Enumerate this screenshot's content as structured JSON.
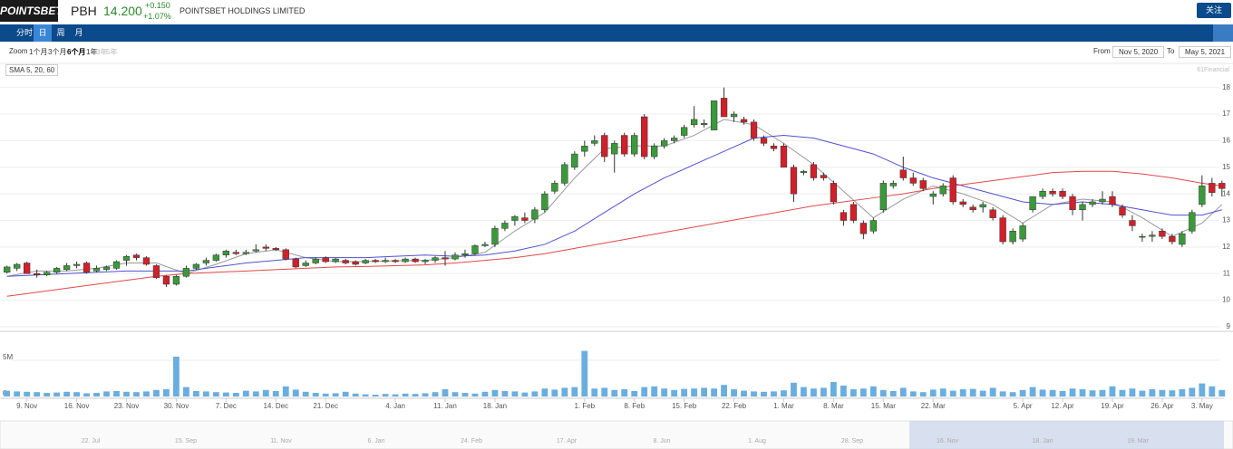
{
  "header": {
    "logo": "POINTSBET",
    "ticker": "PBH",
    "price": "14.200",
    "change": "+0.150",
    "change_pct": "+1.07%",
    "company": "POINTSBET HOLDINGS LIMITED",
    "follow": "关注"
  },
  "tabs": [
    "分时",
    "日",
    "周",
    "月"
  ],
  "active_tab": 1,
  "zoom": {
    "label": "Zoom",
    "options": [
      "1个月",
      "3个月",
      "6个月",
      "1年",
      "3年",
      "5年"
    ],
    "active": 2,
    "disabled": [
      4,
      5
    ]
  },
  "range": {
    "from_label": "From",
    "from": "Nov 5, 2020",
    "to_label": "To",
    "to": "May 5, 2021"
  },
  "chart_data": {
    "type": "candlestick",
    "legend": "SMA 5, 20, 60",
    "credit": "61Financial",
    "up_color": "#3a9a3a",
    "down_color": "#d0202a",
    "grid": true,
    "xlim": [
      -0.7,
      122.2
    ],
    "ylim": [
      9,
      18.5
    ],
    "yticks": [
      9,
      10,
      11,
      12,
      13,
      14,
      15,
      16,
      17,
      18
    ],
    "xticks": [
      {
        "value": 2,
        "label": "9. Nov"
      },
      {
        "value": 7,
        "label": "16. Nov"
      },
      {
        "value": 12,
        "label": "23. Nov"
      },
      {
        "value": 17,
        "label": "30. Nov"
      },
      {
        "value": 22,
        "label": "7. Dec"
      },
      {
        "value": 27,
        "label": "14. Dec"
      },
      {
        "value": 32,
        "label": "21. Dec"
      },
      {
        "value": 39,
        "label": "4. Jan"
      },
      {
        "value": 44,
        "label": "11. Jan"
      },
      {
        "value": 49,
        "label": "18. Jan"
      },
      {
        "value": 58,
        "label": "1. Feb"
      },
      {
        "value": 63,
        "label": "8. Feb"
      },
      {
        "value": 68,
        "label": "15. Feb"
      },
      {
        "value": 73,
        "label": "22. Feb"
      },
      {
        "value": 78,
        "label": "1. Mar"
      },
      {
        "value": 83,
        "label": "8. Mar"
      },
      {
        "value": 88,
        "label": "15. Mar"
      },
      {
        "value": 93,
        "label": "22. Mar"
      },
      {
        "value": 102,
        "label": "5. Apr"
      },
      {
        "value": 106,
        "label": "12. Apr"
      },
      {
        "value": 111,
        "label": "19. Apr"
      },
      {
        "value": 116,
        "label": "26. Apr"
      },
      {
        "value": 120,
        "label": "3. May"
      }
    ],
    "ohlc": [
      [
        11.05,
        11.3,
        11.0,
        11.25
      ],
      [
        11.2,
        11.4,
        11.1,
        11.35
      ],
      [
        11.4,
        11.45,
        11.0,
        11.0
      ],
      [
        11.0,
        11.15,
        10.85,
        10.95
      ],
      [
        10.95,
        11.1,
        10.9,
        11.05
      ],
      [
        11.05,
        11.25,
        11.0,
        11.2
      ],
      [
        11.15,
        11.4,
        11.1,
        11.3
      ],
      [
        11.3,
        11.45,
        11.2,
        11.35
      ],
      [
        11.4,
        11.45,
        11.0,
        11.05
      ],
      [
        11.1,
        11.3,
        11.05,
        11.2
      ],
      [
        11.15,
        11.3,
        11.1,
        11.25
      ],
      [
        11.2,
        11.5,
        11.15,
        11.45
      ],
      [
        11.5,
        11.7,
        11.3,
        11.65
      ],
      [
        11.7,
        11.75,
        11.5,
        11.6
      ],
      [
        11.6,
        11.65,
        11.3,
        11.35
      ],
      [
        11.3,
        11.35,
        10.8,
        10.85
      ],
      [
        10.9,
        10.95,
        10.5,
        10.6
      ],
      [
        10.6,
        10.95,
        10.55,
        10.9
      ],
      [
        10.9,
        11.3,
        10.85,
        11.2
      ],
      [
        11.2,
        11.4,
        11.15,
        11.35
      ],
      [
        11.4,
        11.6,
        11.3,
        11.5
      ],
      [
        11.5,
        11.75,
        11.45,
        11.7
      ],
      [
        11.7,
        11.9,
        11.6,
        11.85
      ],
      [
        11.8,
        11.9,
        11.7,
        11.75
      ],
      [
        11.75,
        11.9,
        11.7,
        11.8
      ],
      [
        11.85,
        12.1,
        11.8,
        11.9
      ],
      [
        12.0,
        12.1,
        11.85,
        11.95
      ],
      [
        11.95,
        12.0,
        11.85,
        11.9
      ],
      [
        11.9,
        11.95,
        11.5,
        11.55
      ],
      [
        11.55,
        11.6,
        11.2,
        11.25
      ],
      [
        11.3,
        11.5,
        11.25,
        11.4
      ],
      [
        11.4,
        11.6,
        11.35,
        11.55
      ],
      [
        11.6,
        11.65,
        11.4,
        11.45
      ],
      [
        11.45,
        11.6,
        11.4,
        11.55
      ],
      [
        11.5,
        11.55,
        11.35,
        11.4
      ],
      [
        11.45,
        11.5,
        11.3,
        11.35
      ],
      [
        11.4,
        11.55,
        11.35,
        11.5
      ],
      [
        11.5,
        11.55,
        11.4,
        11.45
      ],
      [
        11.45,
        11.6,
        11.4,
        11.5
      ],
      [
        11.5,
        11.55,
        11.4,
        11.45
      ],
      [
        11.45,
        11.6,
        11.4,
        11.55
      ],
      [
        11.55,
        11.6,
        11.4,
        11.45
      ],
      [
        11.45,
        11.55,
        11.35,
        11.5
      ],
      [
        11.5,
        11.65,
        11.4,
        11.6
      ],
      [
        11.6,
        11.85,
        11.3,
        11.55
      ],
      [
        11.55,
        11.8,
        11.5,
        11.7
      ],
      [
        11.7,
        11.9,
        11.6,
        11.75
      ],
      [
        11.75,
        12.1,
        11.7,
        12.05
      ],
      [
        12.05,
        12.2,
        12.0,
        12.1
      ],
      [
        12.1,
        12.8,
        12.0,
        12.7
      ],
      [
        12.7,
        13.0,
        12.6,
        12.9
      ],
      [
        13.0,
        13.2,
        12.8,
        13.15
      ],
      [
        13.1,
        13.3,
        12.9,
        13.0
      ],
      [
        13.05,
        13.5,
        12.9,
        13.4
      ],
      [
        13.4,
        14.1,
        13.3,
        14.0
      ],
      [
        14.1,
        14.5,
        14.0,
        14.4
      ],
      [
        14.4,
        15.2,
        14.3,
        15.1
      ],
      [
        15.0,
        15.6,
        14.9,
        15.5
      ],
      [
        15.6,
        16.0,
        15.4,
        15.8
      ],
      [
        15.9,
        16.2,
        15.8,
        16.0
      ],
      [
        16.2,
        16.3,
        15.2,
        15.4
      ],
      [
        15.5,
        16.0,
        14.8,
        15.9
      ],
      [
        16.2,
        16.3,
        15.4,
        15.5
      ],
      [
        15.5,
        16.3,
        15.4,
        16.2
      ],
      [
        16.9,
        17.0,
        15.3,
        15.4
      ],
      [
        15.4,
        15.9,
        15.3,
        15.8
      ],
      [
        15.8,
        16.1,
        15.7,
        16.0
      ],
      [
        16.0,
        16.2,
        15.9,
        16.1
      ],
      [
        16.2,
        16.6,
        16.1,
        16.5
      ],
      [
        16.6,
        17.3,
        16.5,
        16.8
      ],
      [
        16.6,
        16.8,
        16.5,
        16.65
      ],
      [
        16.4,
        17.5,
        16.4,
        17.5
      ],
      [
        17.6,
        18.0,
        16.9,
        16.9
      ],
      [
        16.9,
        17.1,
        16.7,
        17.0
      ],
      [
        16.8,
        16.9,
        16.6,
        16.7
      ],
      [
        16.7,
        16.8,
        16.0,
        16.1
      ],
      [
        16.1,
        16.2,
        15.8,
        15.9
      ],
      [
        15.8,
        15.9,
        15.6,
        15.7
      ],
      [
        15.8,
        15.9,
        15.0,
        15.0
      ],
      [
        15.0,
        15.1,
        13.7,
        14.0
      ],
      [
        14.8,
        14.9,
        14.7,
        14.85
      ],
      [
        15.1,
        15.2,
        14.5,
        14.6
      ],
      [
        14.7,
        14.8,
        14.5,
        14.6
      ],
      [
        14.4,
        14.5,
        13.6,
        13.7
      ],
      [
        13.3,
        13.4,
        12.8,
        13.0
      ],
      [
        13.6,
        13.7,
        12.9,
        13.0
      ],
      [
        12.9,
        13.0,
        12.3,
        12.5
      ],
      [
        12.6,
        13.1,
        12.5,
        13.0
      ],
      [
        13.4,
        14.5,
        13.3,
        14.4
      ],
      [
        14.3,
        14.5,
        14.2,
        14.4
      ],
      [
        14.9,
        15.4,
        14.5,
        14.6
      ],
      [
        14.6,
        14.8,
        14.3,
        14.4
      ],
      [
        14.5,
        14.6,
        14.1,
        14.2
      ],
      [
        13.9,
        14.1,
        13.6,
        14.0
      ],
      [
        14.0,
        14.4,
        13.9,
        14.3
      ],
      [
        14.6,
        14.7,
        13.6,
        13.7
      ],
      [
        13.7,
        13.8,
        13.5,
        13.6
      ],
      [
        13.5,
        13.6,
        13.3,
        13.4
      ],
      [
        13.5,
        13.7,
        13.3,
        13.6
      ],
      [
        13.4,
        13.5,
        13.0,
        13.1
      ],
      [
        13.1,
        13.2,
        12.1,
        12.2
      ],
      [
        12.2,
        12.7,
        12.1,
        12.6
      ],
      [
        12.3,
        12.9,
        12.2,
        12.8
      ],
      [
        13.4,
        13.9,
        13.3,
        13.9
      ],
      [
        13.9,
        14.2,
        13.8,
        14.1
      ],
      [
        14.1,
        14.2,
        13.9,
        14.0
      ],
      [
        14.1,
        14.2,
        13.8,
        13.9
      ],
      [
        13.9,
        14.0,
        13.2,
        13.4
      ],
      [
        13.4,
        13.7,
        13.0,
        13.6
      ],
      [
        13.6,
        13.8,
        13.5,
        13.7
      ],
      [
        13.7,
        14.1,
        13.6,
        13.8
      ],
      [
        13.9,
        14.1,
        13.5,
        13.6
      ],
      [
        13.5,
        13.6,
        13.1,
        13.2
      ],
      [
        13.0,
        13.2,
        12.6,
        12.8
      ],
      [
        12.4,
        12.5,
        12.2,
        12.4
      ],
      [
        12.4,
        12.6,
        12.2,
        12.45
      ],
      [
        12.6,
        12.7,
        12.3,
        12.4
      ],
      [
        12.4,
        12.5,
        12.1,
        12.2
      ],
      [
        12.1,
        12.6,
        12.0,
        12.5
      ],
      [
        12.6,
        13.4,
        12.5,
        13.3
      ],
      [
        13.6,
        14.7,
        13.5,
        14.3
      ],
      [
        14.4,
        14.6,
        13.9,
        14.05
      ],
      [
        14.4,
        14.5,
        13.9,
        14.2
      ]
    ],
    "sma": [
      {
        "color": "#9a9a9a",
        "x": [
          0,
          3,
          6,
          9,
          12,
          15,
          18,
          21,
          24,
          27,
          30,
          33,
          36,
          39,
          42,
          45,
          48,
          51,
          54,
          57,
          60,
          63,
          66,
          69,
          72,
          75,
          78,
          81,
          84,
          87,
          90,
          93,
          96,
          99,
          102,
          105,
          108,
          111,
          114,
          117,
          120,
          122
        ],
        "values": [
          10.9,
          11.1,
          11.1,
          11.2,
          11.4,
          11.4,
          11.0,
          11.35,
          11.75,
          11.9,
          11.6,
          11.45,
          11.45,
          11.48,
          11.5,
          11.6,
          11.8,
          12.6,
          13.3,
          14.6,
          15.7,
          15.8,
          15.8,
          16.2,
          16.8,
          16.6,
          15.9,
          15.1,
          14.1,
          13.1,
          13.8,
          14.3,
          14.0,
          13.6,
          12.9,
          13.6,
          13.8,
          13.7,
          13.1,
          12.4,
          12.9,
          13.6
        ]
      },
      {
        "color": "#5050d0",
        "x": [
          0,
          3,
          6,
          9,
          12,
          15,
          18,
          21,
          24,
          27,
          30,
          33,
          36,
          39,
          42,
          45,
          48,
          51,
          54,
          57,
          60,
          63,
          66,
          69,
          72,
          75,
          78,
          81,
          84,
          87,
          90,
          93,
          96,
          99,
          102,
          105,
          108,
          111,
          114,
          117,
          120,
          122
        ],
        "values": [
          10.9,
          10.95,
          11.0,
          11.05,
          11.1,
          11.1,
          11.1,
          11.25,
          11.4,
          11.5,
          11.6,
          11.6,
          11.6,
          11.65,
          11.7,
          11.65,
          11.7,
          11.85,
          12.1,
          12.6,
          13.3,
          14.0,
          14.6,
          15.1,
          15.6,
          16.1,
          16.2,
          16.1,
          15.8,
          15.5,
          15.0,
          14.6,
          14.3,
          14.0,
          13.7,
          13.6,
          13.7,
          13.6,
          13.4,
          13.2,
          13.2,
          13.4
        ]
      },
      {
        "color": "#e04848",
        "x": [
          0,
          3,
          6,
          9,
          12,
          15,
          18,
          21,
          24,
          27,
          30,
          33,
          36,
          39,
          42,
          45,
          48,
          51,
          54,
          57,
          60,
          63,
          66,
          69,
          72,
          75,
          78,
          81,
          84,
          87,
          90,
          93,
          96,
          99,
          102,
          105,
          108,
          111,
          114,
          117,
          120,
          122
        ],
        "values": [
          10.15,
          10.3,
          10.45,
          10.6,
          10.75,
          10.9,
          11.0,
          11.05,
          11.1,
          11.15,
          11.2,
          11.25,
          11.27,
          11.3,
          11.33,
          11.4,
          11.5,
          11.6,
          11.75,
          11.95,
          12.15,
          12.35,
          12.55,
          12.75,
          12.95,
          13.15,
          13.35,
          13.55,
          13.7,
          13.85,
          14.0,
          14.2,
          14.35,
          14.5,
          14.65,
          14.8,
          14.85,
          14.85,
          14.75,
          14.6,
          14.4,
          14.3
        ]
      }
    ],
    "volume": {
      "color": "#6aaee0",
      "ylim": [
        0,
        6500000
      ],
      "yticks": [
        0,
        {
          "value": 5000000,
          "label": "5M"
        }
      ],
      "values": [
        800000,
        700000,
        650000,
        600000,
        500000,
        550000,
        650000,
        600000,
        450000,
        500000,
        700000,
        750000,
        650000,
        600000,
        700000,
        900000,
        1000000,
        5500000,
        1300000,
        750000,
        700000,
        600000,
        550000,
        500000,
        800000,
        700000,
        900000,
        750000,
        1400000,
        950000,
        650000,
        500000,
        400000,
        450000,
        650000,
        400000,
        300000,
        250000,
        350000,
        300000,
        400000,
        350000,
        450000,
        600000,
        1000000,
        600000,
        500000,
        400000,
        650000,
        900000,
        750000,
        700000,
        550000,
        700000,
        1100000,
        950000,
        1200000,
        1300000,
        6300000,
        1100000,
        1200000,
        900000,
        1000000,
        750000,
        1300000,
        1400000,
        1100000,
        900000,
        1050000,
        1100000,
        1200000,
        1100000,
        1600000,
        1000000,
        800000,
        700000,
        650000,
        700000,
        850000,
        1900000,
        1300000,
        1100000,
        1200000,
        2000000,
        1500000,
        1000000,
        1100000,
        1400000,
        900000,
        750000,
        1200000,
        700000,
        600000,
        950000,
        1100000,
        800000,
        1000000,
        1050000,
        800000,
        1200000,
        700000,
        600000,
        900000,
        1300000,
        950000,
        900000,
        750000,
        1100000,
        1000000,
        850000,
        900000,
        1400000,
        900000,
        1100000,
        800000,
        1000000,
        900000,
        850000,
        1000000,
        1200000,
        1800000,
        1400000,
        900000
      ]
    },
    "navigator": {
      "labels": [
        "22. Jul",
        "15. Sep",
        "11. Nov",
        "6. Jan",
        "24. Feb",
        "17. Apr",
        "8. Jun",
        "1. Aug",
        "28. Sep",
        "16. Nov",
        "18. Jan",
        "19. Mar"
      ]
    }
  }
}
